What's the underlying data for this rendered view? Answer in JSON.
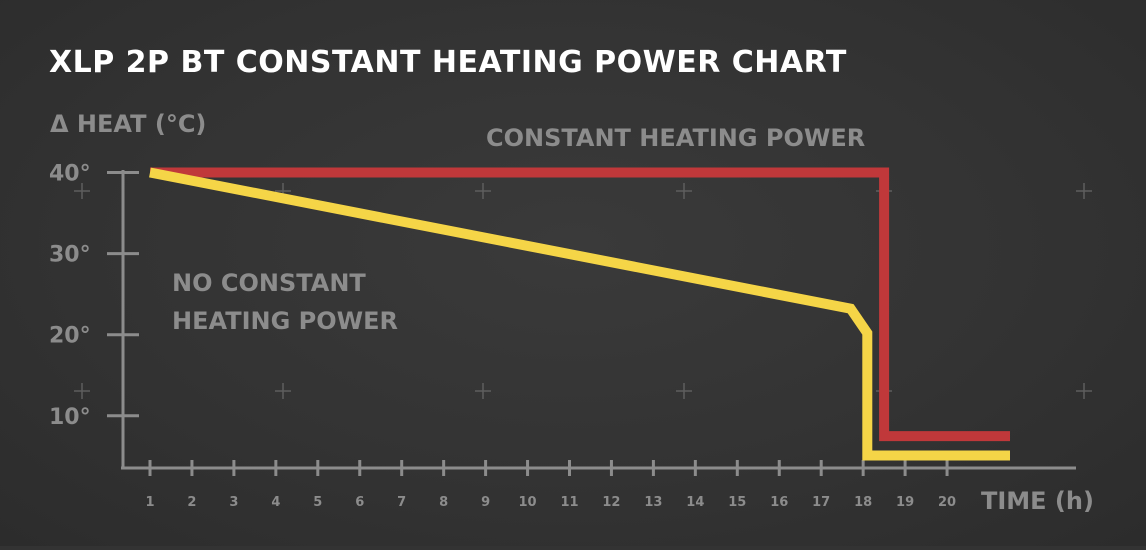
{
  "chart_data": {
    "type": "line",
    "title": "XLP 2P BT CONSTANT HEATING POWER CHART",
    "ylabel": "Δ HEAT (°C)",
    "xlabel": "TIME (h)",
    "x_ticks": [
      "1",
      "2",
      "3",
      "4",
      "5",
      "6",
      "7",
      "8",
      "9",
      "10",
      "11",
      "12",
      "13",
      "14",
      "15",
      "16",
      "17",
      "18",
      "19",
      "20"
    ],
    "y_ticks": [
      {
        "value": 10,
        "label": "10°"
      },
      {
        "value": 20,
        "label": "20°"
      },
      {
        "value": 30,
        "label": "30°"
      },
      {
        "value": 40,
        "label": "40°"
      }
    ],
    "xlim": [
      1,
      21
    ],
    "ylim": [
      5,
      40
    ],
    "grid": "plus markers",
    "series": [
      {
        "name": "CONSTANT HEATING POWER",
        "color": "#c0383a",
        "points": [
          [
            1,
            40
          ],
          [
            18.5,
            40
          ],
          [
            18.5,
            7.5
          ],
          [
            21.5,
            7.5
          ]
        ]
      },
      {
        "name": "NO CONSTANT HEATING POWER",
        "color": "#f5d547",
        "points": [
          [
            1,
            40
          ],
          [
            17.7,
            23.2
          ],
          [
            18.1,
            20.2
          ],
          [
            18.1,
            5.1
          ],
          [
            21.5,
            5.1
          ]
        ]
      }
    ],
    "annotations": [
      {
        "text": "CONSTANT HEATING POWER",
        "series": 0
      },
      {
        "text": "NO CONSTANT",
        "series": 1
      },
      {
        "text": "HEATING POWER",
        "series": 1
      }
    ]
  }
}
